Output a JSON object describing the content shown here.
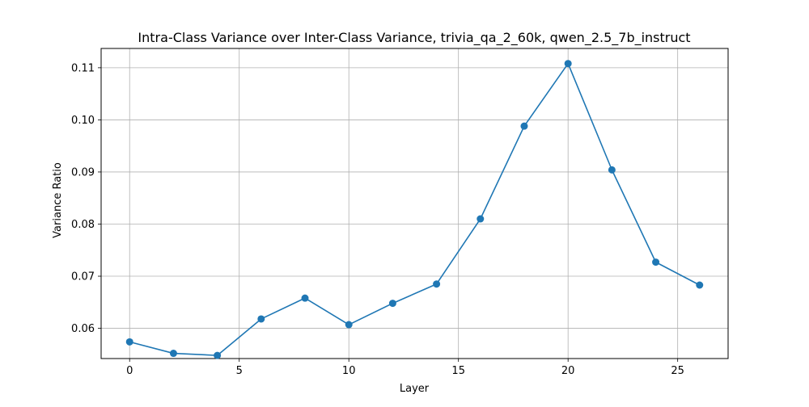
{
  "chart_data": {
    "type": "line",
    "title": "Intra-Class Variance over Inter-Class Variance, trivia_qa_2_60k, qwen_2.5_7b_instruct",
    "xlabel": "Layer",
    "ylabel": "Variance Ratio",
    "xlim": [
      -1.3,
      27.3
    ],
    "ylim": [
      0.0542,
      0.1137
    ],
    "xticks": [
      0,
      5,
      10,
      15,
      20,
      25
    ],
    "xtick_labels": [
      "0",
      "5",
      "10",
      "15",
      "20",
      "25"
    ],
    "yticks": [
      0.06,
      0.07,
      0.08,
      0.09,
      0.1,
      0.11
    ],
    "ytick_labels": [
      "0.06",
      "0.07",
      "0.08",
      "0.09",
      "0.10",
      "0.11"
    ],
    "grid": true,
    "series": [
      {
        "color": "#1f77b4",
        "marker": "circle",
        "x": [
          0,
          2,
          4,
          6,
          8,
          10,
          12,
          14,
          16,
          18,
          20,
          22,
          24,
          26
        ],
        "y": [
          0.0574,
          0.0552,
          0.0548,
          0.0618,
          0.0658,
          0.0607,
          0.0648,
          0.0685,
          0.081,
          0.0988,
          0.1108,
          0.0904,
          0.0727,
          0.0683
        ]
      }
    ]
  }
}
